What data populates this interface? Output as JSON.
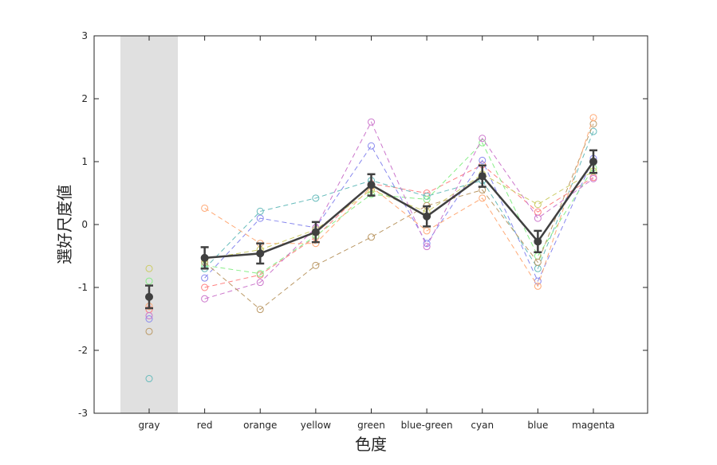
{
  "chart_data": {
    "type": "line",
    "title": "",
    "xlabel": "色度",
    "ylabel": "選好尺度値",
    "categories": [
      "gray",
      "red",
      "orange",
      "yellow",
      "green",
      "blue-green",
      "cyan",
      "blue",
      "magenta"
    ],
    "ylim": [
      -3,
      3
    ],
    "yticks": [
      -3,
      -2,
      -1,
      0,
      1,
      2,
      3
    ],
    "highlight_category": "gray",
    "highlight_color": "#e0e0e0",
    "grid": false,
    "mean": {
      "values": [
        -1.15,
        -0.53,
        -0.46,
        -0.12,
        0.63,
        0.13,
        0.77,
        -0.27,
        1.0
      ],
      "err": [
        0.18,
        0.17,
        0.16,
        0.16,
        0.17,
        0.16,
        0.17,
        0.17,
        0.18
      ],
      "color": "#404040"
    },
    "series": [
      {
        "color": "#ff8080",
        "values": [
          -1.35,
          -1.0,
          -0.8,
          -0.2,
          0.65,
          0.5,
          0.95,
          0.2,
          0.75
        ]
      },
      {
        "color": "#8888ee",
        "values": [
          -1.5,
          -0.85,
          0.1,
          -0.05,
          1.25,
          -0.3,
          1.02,
          -0.9,
          1.05
        ]
      },
      {
        "color": "#66bbbb",
        "values": [
          -2.45,
          -0.7,
          0.21,
          0.42,
          0.7,
          0.45,
          0.7,
          -0.7,
          1.48
        ]
      },
      {
        "color": "#88ee88",
        "values": [
          -0.9,
          -0.65,
          -0.78,
          -0.18,
          0.48,
          0.4,
          1.3,
          -0.5,
          0.9
        ]
      },
      {
        "color": "#cc77cc",
        "values": [
          -1.45,
          -1.18,
          -0.92,
          -0.05,
          1.63,
          -0.35,
          1.37,
          0.1,
          0.73
        ]
      },
      {
        "color": "#bb9966",
        "values": [
          -1.7,
          -0.6,
          -1.35,
          -0.65,
          -0.2,
          0.3,
          0.55,
          -0.6,
          1.6
        ]
      },
      {
        "color": "#ffaa77",
        "values": [
          -1.3,
          0.26,
          -0.3,
          -0.3,
          0.6,
          -0.1,
          0.42,
          -0.98,
          1.7
        ]
      },
      {
        "color": "#cccc66",
        "values": [
          -0.7,
          -0.55,
          -0.4,
          -0.08,
          0.55,
          0.2,
          0.8,
          0.32,
          0.85
        ]
      }
    ]
  }
}
